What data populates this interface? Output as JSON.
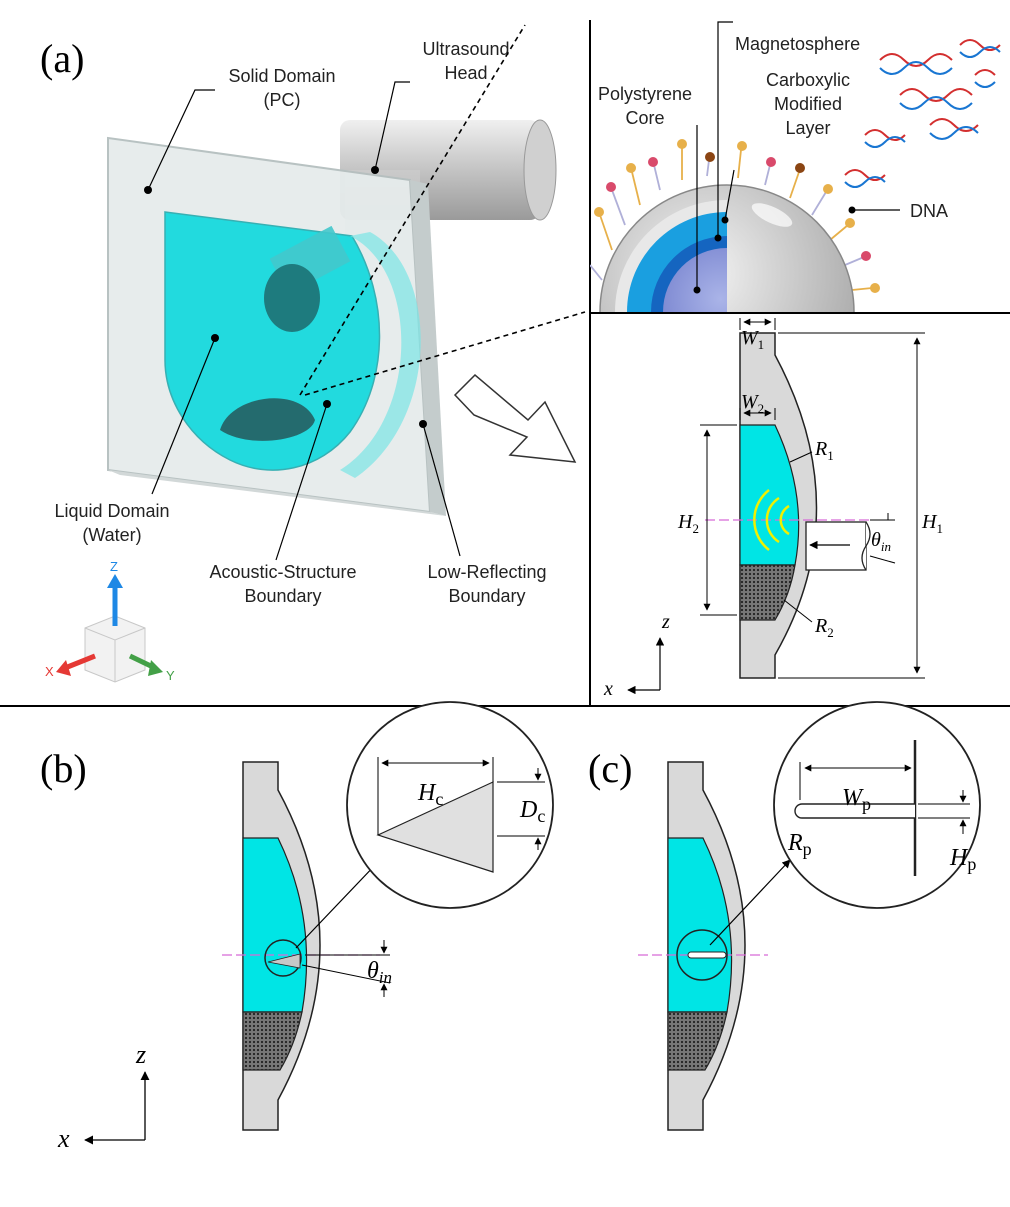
{
  "panels": {
    "a": {
      "tag": "(a)",
      "labels": {
        "solid_l1": "Solid Domain",
        "solid_l2": "(PC)",
        "ultra_l1": "Ultrasound",
        "ultra_l2": "Head",
        "liquid_l1": "Liquid Domain",
        "liquid_l2": "(Water)",
        "asb_l1": "Acoustic-Structure",
        "asb_l2": "Boundary",
        "lrb_l1": "Low-Reflecting",
        "lrb_l2": "Boundary"
      },
      "axes": {
        "x": "X",
        "y": "Y",
        "z": "Z"
      }
    },
    "bead": {
      "magnetosphere": "Magnetosphere",
      "ps_l1": "Polystyrene",
      "ps_l2": "Core",
      "carb_l1": "Carboxylic",
      "carb_l2": "Modified",
      "carb_l3": "Layer",
      "dna": "DNA"
    },
    "geometry": {
      "w1": "W",
      "w1_sub": "1",
      "w2": "W",
      "w2_sub": "2",
      "r1": "R",
      "r1_sub": "1",
      "r2": "R",
      "r2_sub": "2",
      "h1": "H",
      "h1_sub": "1",
      "h2": "H",
      "h2_sub": "2",
      "theta": "θ",
      "theta_sub": "in",
      "axis_z": "z",
      "axis_x": "x"
    },
    "b": {
      "tag": "(b)",
      "hc": "H",
      "hc_sub": "c",
      "dc": "D",
      "dc_sub": "c",
      "theta": "θ",
      "theta_sub": "in",
      "axis_z": "z",
      "axis_x": "x"
    },
    "c": {
      "tag": "(c)",
      "wp": "W",
      "wp_sub": "p",
      "rp": "R",
      "rp_sub": "p",
      "hp": "H",
      "hp_sub": "p"
    }
  },
  "colors": {
    "water": "#00e5e5",
    "solid": "#d9d9d9",
    "beads": "#4d4d4d",
    "cyan_layer": "#1aa3e0",
    "axis_z": "#1e88e5",
    "axis_x": "#e53935",
    "axis_y": "#43a047",
    "wave": "#f0f000",
    "centerline": "#d86bd8"
  }
}
